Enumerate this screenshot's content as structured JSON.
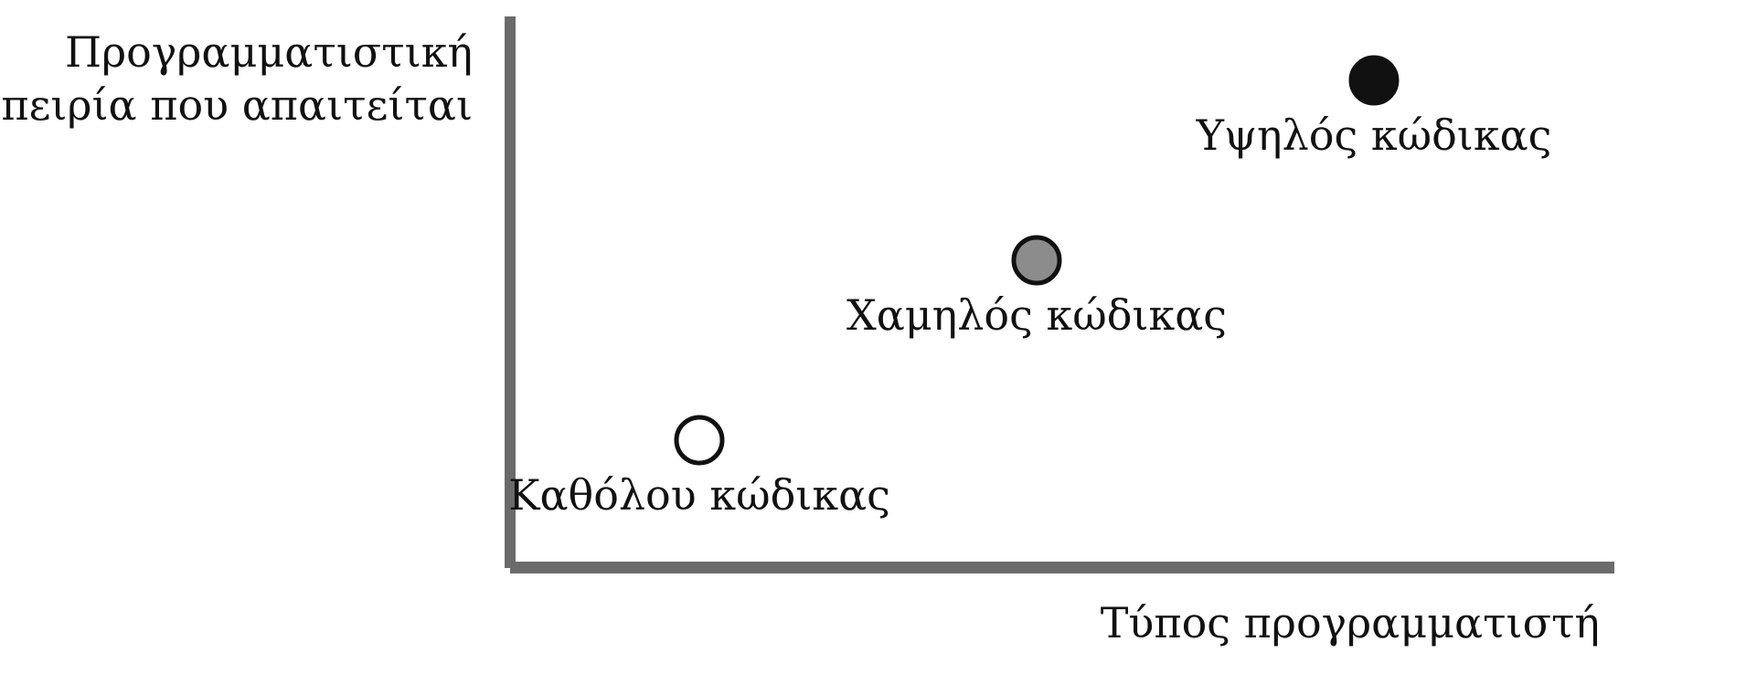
{
  "diagram": {
    "y_axis_title": [
      "Προγραμματιστική",
      "εμπειρία που απαιτείται"
    ],
    "x_axis_title": "Τύπος προγραμματιστή",
    "colors": {
      "axis": "#6b6b6b",
      "outline": "#111111"
    },
    "points": [
      {
        "name": "Καθόλου κώδικας",
        "x": 1,
        "y": 1,
        "fill": "#ffffff"
      },
      {
        "name": "Χαμηλός κώδικας",
        "x": 2,
        "y": 2,
        "fill": "#8c8c8c"
      },
      {
        "name": "Υψηλός κώδικας",
        "x": 3,
        "y": 3,
        "fill": "#111111"
      }
    ]
  }
}
